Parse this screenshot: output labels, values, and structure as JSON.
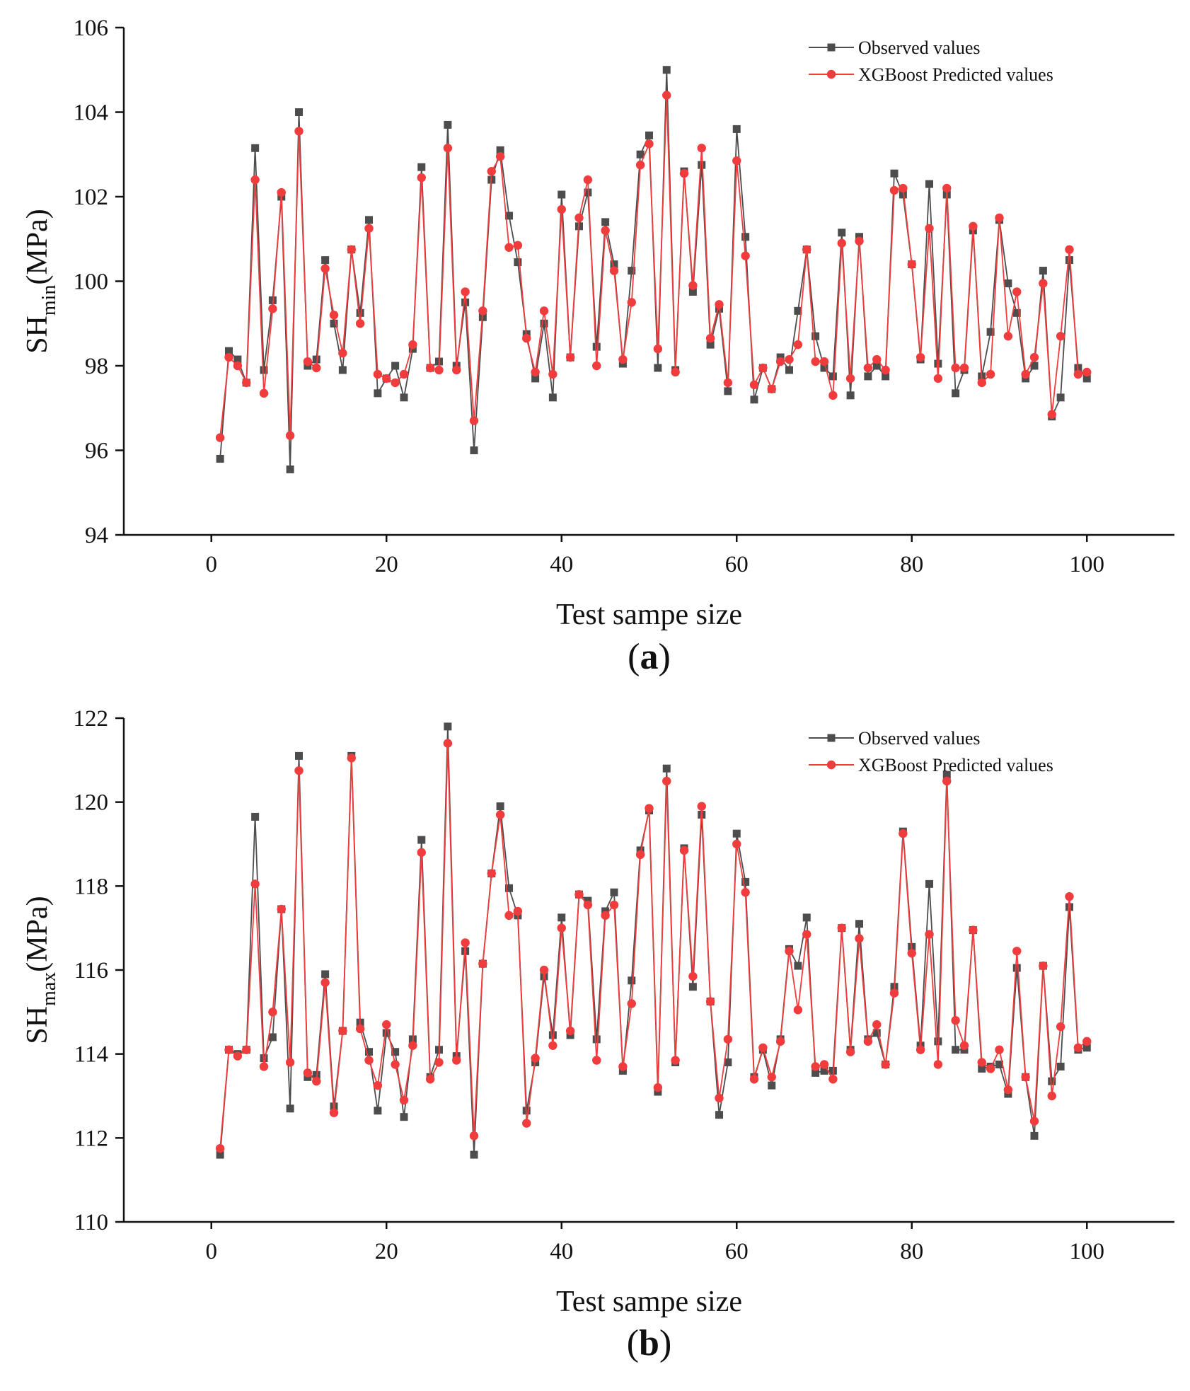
{
  "chart_data": [
    {
      "type": "line",
      "panel_label": "a",
      "title": "",
      "xlabel": "Test sampe size",
      "ylabel_main": "SH",
      "ylabel_sub": "min",
      "ylabel_unit": "(MPa)",
      "xlim": [
        -10,
        110
      ],
      "ylim": [
        94,
        106
      ],
      "xticks": [
        0,
        20,
        40,
        60,
        80,
        100
      ],
      "yticks": [
        94,
        96,
        98,
        100,
        102,
        104,
        106
      ],
      "legend_position": "top-right",
      "series": [
        {
          "name": "Observed values",
          "color": "#4d4d4d",
          "marker": "square",
          "values": [
            95.8,
            98.35,
            98.15,
            97.6,
            103.15,
            97.9,
            99.55,
            102.0,
            95.55,
            104.0,
            98.0,
            98.15,
            100.5,
            99.0,
            97.9,
            100.75,
            99.25,
            101.45,
            97.35,
            97.7,
            98.0,
            97.25,
            98.4,
            102.7,
            97.95,
            98.1,
            103.7,
            98.0,
            99.5,
            96.0,
            99.15,
            102.4,
            103.1,
            101.55,
            100.45,
            98.75,
            97.7,
            99.0,
            97.25,
            102.05,
            98.2,
            101.3,
            102.1,
            98.45,
            101.4,
            100.4,
            98.05,
            100.25,
            103.0,
            103.45,
            97.95,
            105.0,
            97.9,
            102.6,
            99.75,
            102.75,
            98.5,
            99.35,
            97.4,
            103.6,
            101.05,
            97.2,
            97.95,
            97.45,
            98.2,
            97.9,
            99.3,
            100.75,
            98.7,
            97.95,
            97.75,
            101.15,
            97.3,
            101.05,
            97.75,
            98.0,
            97.75,
            102.55,
            102.05,
            100.4,
            98.15,
            102.3,
            98.05,
            102.05,
            97.35,
            97.9,
            101.2,
            97.75,
            98.8,
            101.45,
            99.95,
            99.25,
            97.7,
            98.0,
            100.25,
            96.8,
            97.25,
            100.5,
            97.95,
            97.7
          ]
        },
        {
          "name": "XGBoost Predicted values",
          "color": "#f03c3c",
          "marker": "circle",
          "values": [
            96.3,
            98.2,
            98.0,
            97.6,
            102.4,
            97.35,
            99.35,
            102.1,
            96.35,
            103.55,
            98.1,
            97.95,
            100.3,
            99.2,
            98.3,
            100.75,
            99.0,
            101.25,
            97.8,
            97.7,
            97.6,
            97.8,
            98.5,
            102.45,
            97.95,
            97.9,
            103.15,
            97.9,
            99.75,
            96.7,
            99.3,
            102.6,
            102.95,
            100.8,
            100.85,
            98.65,
            97.85,
            99.3,
            97.8,
            101.7,
            98.2,
            101.5,
            102.4,
            98.0,
            101.2,
            100.25,
            98.15,
            99.5,
            102.75,
            103.25,
            98.4,
            104.4,
            97.85,
            102.55,
            99.9,
            103.15,
            98.65,
            99.45,
            97.6,
            102.85,
            100.6,
            97.55,
            97.95,
            97.45,
            98.1,
            98.15,
            98.5,
            100.75,
            98.1,
            98.1,
            97.3,
            100.9,
            97.7,
            100.95,
            97.95,
            98.15,
            97.9,
            102.15,
            102.2,
            100.4,
            98.2,
            101.25,
            97.7,
            102.2,
            97.95,
            97.95,
            101.3,
            97.6,
            97.8,
            101.5,
            98.7,
            99.75,
            97.8,
            98.2,
            99.95,
            96.85,
            98.7,
            100.75,
            97.8,
            97.85
          ]
        }
      ]
    },
    {
      "type": "line",
      "panel_label": "b",
      "title": "",
      "xlabel": "Test sampe size",
      "ylabel_main": "SH",
      "ylabel_sub": "max",
      "ylabel_unit": "(MPa)",
      "xlim": [
        -10,
        110
      ],
      "ylim": [
        110,
        122
      ],
      "xticks": [
        0,
        20,
        40,
        60,
        80,
        100
      ],
      "yticks": [
        110,
        112,
        114,
        116,
        118,
        120,
        122
      ],
      "legend_position": "top-right",
      "series": [
        {
          "name": "Observed values",
          "color": "#4d4d4d",
          "marker": "square",
          "values": [
            111.6,
            114.1,
            114.0,
            114.1,
            119.65,
            113.9,
            114.4,
            117.45,
            112.7,
            121.1,
            113.45,
            113.5,
            115.9,
            112.75,
            114.55,
            121.1,
            114.75,
            114.05,
            112.65,
            114.5,
            114.05,
            112.5,
            114.35,
            119.1,
            113.45,
            114.1,
            121.8,
            113.95,
            116.45,
            111.6,
            116.15,
            118.3,
            119.9,
            117.95,
            117.3,
            112.65,
            113.8,
            115.85,
            114.45,
            117.25,
            114.45,
            117.8,
            117.65,
            114.35,
            117.4,
            117.85,
            113.6,
            115.75,
            118.85,
            119.8,
            113.1,
            120.8,
            113.8,
            118.9,
            115.6,
            119.7,
            115.25,
            112.55,
            113.8,
            119.25,
            118.1,
            113.45,
            114.1,
            113.25,
            114.35,
            116.5,
            116.1,
            117.25,
            113.55,
            113.6,
            113.6,
            117.0,
            114.1,
            117.1,
            114.35,
            114.5,
            113.75,
            115.6,
            119.3,
            116.55,
            114.2,
            118.05,
            114.3,
            120.65,
            114.1,
            114.1,
            116.95,
            113.65,
            113.7,
            113.75,
            113.05,
            116.05,
            113.45,
            112.05,
            116.1,
            113.35,
            113.7,
            117.5,
            114.1,
            114.15
          ]
        },
        {
          "name": "XGBoost Predicted values",
          "color": "#f03c3c",
          "marker": "circle",
          "values": [
            111.75,
            114.1,
            113.95,
            114.1,
            118.05,
            113.7,
            115.0,
            117.45,
            113.8,
            120.75,
            113.55,
            113.35,
            115.7,
            112.6,
            114.55,
            121.05,
            114.6,
            113.85,
            113.25,
            114.7,
            113.75,
            112.9,
            114.2,
            118.8,
            113.4,
            113.8,
            121.4,
            113.85,
            116.65,
            112.05,
            116.15,
            118.3,
            119.7,
            117.3,
            117.4,
            112.35,
            113.9,
            116.0,
            114.2,
            117.0,
            114.55,
            117.8,
            117.55,
            113.85,
            117.3,
            117.55,
            113.7,
            115.2,
            118.75,
            119.85,
            113.2,
            120.5,
            113.85,
            118.85,
            115.85,
            119.9,
            115.25,
            112.95,
            114.35,
            119.0,
            117.85,
            113.4,
            114.15,
            113.45,
            114.3,
            116.45,
            115.05,
            116.85,
            113.7,
            113.75,
            113.4,
            117.0,
            114.05,
            116.75,
            114.3,
            114.7,
            113.75,
            115.45,
            119.25,
            116.4,
            114.1,
            116.85,
            113.75,
            120.5,
            114.8,
            114.2,
            116.95,
            113.8,
            113.65,
            114.1,
            113.15,
            116.45,
            113.45,
            112.4,
            116.1,
            113.0,
            114.65,
            117.75,
            114.15,
            114.3
          ]
        }
      ]
    }
  ]
}
